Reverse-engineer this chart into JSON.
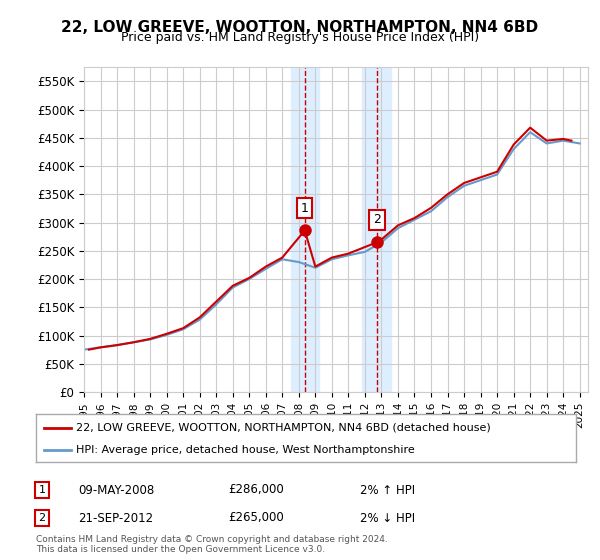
{
  "title": "22, LOW GREEVE, WOOTTON, NORTHAMPTON, NN4 6BD",
  "subtitle": "Price paid vs. HM Land Registry's House Price Index (HPI)",
  "ylabel_ticks": [
    "£0",
    "£50K",
    "£100K",
    "£150K",
    "£200K",
    "£250K",
    "£300K",
    "£350K",
    "£400K",
    "£450K",
    "£500K",
    "£550K"
  ],
  "ytick_values": [
    0,
    50000,
    100000,
    150000,
    200000,
    250000,
    300000,
    350000,
    400000,
    450000,
    500000,
    550000
  ],
  "ylim": [
    0,
    575000
  ],
  "xlim_start": 1995.0,
  "xlim_end": 2025.5,
  "transaction1_date": 2008.36,
  "transaction1_price": 286000,
  "transaction1_label": "1",
  "transaction2_date": 2012.72,
  "transaction2_price": 265000,
  "transaction2_label": "2",
  "shade_x1_start": 2007.5,
  "shade_x1_end": 2009.2,
  "shade_x2_start": 2011.8,
  "shade_x2_end": 2013.6,
  "legend_line1": "22, LOW GREEVE, WOOTTON, NORTHAMPTON, NN4 6BD (detached house)",
  "legend_line2": "HPI: Average price, detached house, West Northamptonshire",
  "table_row1": [
    "1",
    "09-MAY-2008",
    "£286,000",
    "2% ↑ HPI"
  ],
  "table_row2": [
    "2",
    "21-SEP-2012",
    "£265,000",
    "2% ↓ HPI"
  ],
  "footnote": "Contains HM Land Registry data © Crown copyright and database right 2024.\nThis data is licensed under the Open Government Licence v3.0.",
  "line_color_red": "#cc0000",
  "line_color_blue": "#6699cc",
  "grid_color": "#cccccc",
  "shade_color": "#ddeeff",
  "background_color": "#ffffff",
  "plot_bg_color": "#ffffff",
  "hpi_years": [
    1995,
    1996,
    1997,
    1998,
    1999,
    2000,
    2001,
    2002,
    2003,
    2004,
    2005,
    2006,
    2007,
    2008,
    2009,
    2010,
    2011,
    2012,
    2013,
    2014,
    2015,
    2016,
    2017,
    2018,
    2019,
    2020,
    2021,
    2022,
    2023,
    2024,
    2025
  ],
  "hpi_values": [
    75000,
    79000,
    83000,
    88000,
    93000,
    101000,
    111000,
    128000,
    155000,
    185000,
    200000,
    218000,
    235000,
    230000,
    220000,
    235000,
    242000,
    248000,
    265000,
    290000,
    305000,
    320000,
    345000,
    365000,
    375000,
    385000,
    430000,
    460000,
    440000,
    445000,
    440000
  ],
  "price_years": [
    1995.3,
    1996.0,
    1997.0,
    1998.0,
    1999.0,
    2000.0,
    2001.0,
    2002.0,
    2003.0,
    2004.0,
    2005.0,
    2006.0,
    2007.0,
    2008.36,
    2009.0,
    2010.0,
    2011.0,
    2012.72,
    2013.0,
    2014.0,
    2015.0,
    2016.0,
    2017.0,
    2018.0,
    2019.0,
    2020.0,
    2021.0,
    2022.0,
    2023.0,
    2024.0,
    2024.5
  ],
  "price_values": [
    75000,
    79000,
    83000,
    88000,
    94000,
    103000,
    113000,
    132000,
    160000,
    188000,
    202000,
    222000,
    238000,
    286000,
    222000,
    238000,
    245000,
    265000,
    270000,
    295000,
    308000,
    326000,
    350000,
    370000,
    380000,
    390000,
    438000,
    468000,
    445000,
    448000,
    445000
  ]
}
